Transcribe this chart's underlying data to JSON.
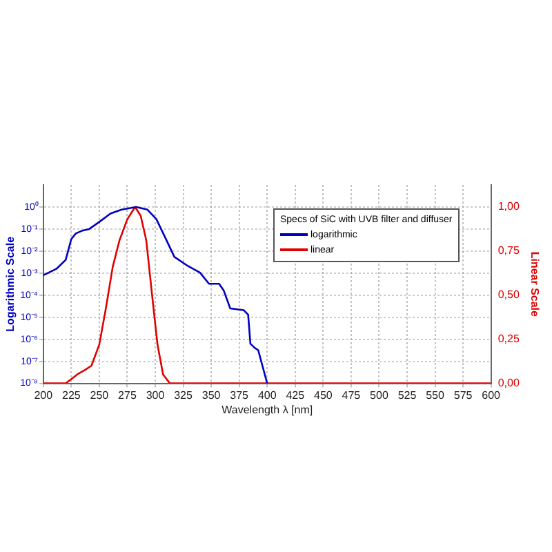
{
  "chart_data": {
    "type": "line",
    "xlabel": "Wavelength λ [nm]",
    "ylabel": "Logarithmic Scale",
    "y2label": "Linear Scale",
    "legend_title": "Specs of SiC with UVB filter and diffuser",
    "series": [
      {
        "name": "logarithmic",
        "color": "#0000c0",
        "x": [
          200,
          212,
          220,
          225,
          229,
          235,
          241,
          250,
          260,
          270,
          283,
          293,
          301,
          309,
          317,
          328,
          340,
          348,
          357,
          361,
          367,
          379,
          383,
          385,
          389,
          392,
          400
        ],
        "values": [
          0.0008,
          0.0016,
          0.004,
          0.035,
          0.063,
          0.085,
          0.1,
          0.21,
          0.5,
          0.76,
          1,
          0.76,
          0.28,
          0.04,
          0.0055,
          0.0023,
          0.00105,
          0.00033,
          0.00033,
          0.00017,
          2.5e-05,
          2.1e-05,
          1.3e-05,
          6.3e-07,
          4e-07,
          3.2e-07,
          1e-08
        ]
      },
      {
        "name": "linear",
        "color": "#e00000",
        "axis": "y2",
        "x": [
          200,
          220,
          225,
          231,
          237,
          243,
          250,
          256,
          262,
          268,
          275,
          282,
          287,
          292,
          297,
          302,
          307,
          313,
          350,
          400,
          450,
          500,
          550,
          600
        ],
        "values": [
          0,
          0,
          0.024,
          0.054,
          0.075,
          0.1,
          0.22,
          0.43,
          0.66,
          0.81,
          0.93,
          1,
          0.95,
          0.81,
          0.51,
          0.22,
          0.05,
          0,
          0,
          0,
          0,
          0,
          0,
          0
        ]
      }
    ],
    "xlim": [
      200,
      600
    ],
    "xticks": [
      200,
      225,
      250,
      275,
      300,
      325,
      350,
      375,
      400,
      425,
      450,
      475,
      500,
      525,
      550,
      575,
      600
    ],
    "log": "y",
    "ylim": [
      1e-08,
      10
    ],
    "yticks": [
      {
        "value": 1e-08,
        "label": "10⁻⁸"
      },
      {
        "value": 1e-07,
        "label": "10⁻⁷"
      },
      {
        "value": 1e-06,
        "label": "10⁻⁶"
      },
      {
        "value": 1e-05,
        "label": "10⁻⁵"
      },
      {
        "value": 0.0001,
        "label": "10⁻⁴"
      },
      {
        "value": 0.001,
        "label": "10⁻³"
      },
      {
        "value": 0.01,
        "label": "10⁻²"
      },
      {
        "value": 0.1,
        "label": "10⁻¹"
      },
      {
        "value": 1,
        "label": "10⁰"
      }
    ],
    "y2lim": [
      0,
      1.125
    ],
    "y2ticks": [
      {
        "value": 0,
        "label": "0,00"
      },
      {
        "value": 0.25,
        "label": "0,25"
      },
      {
        "value": 0.5,
        "label": "0,50"
      },
      {
        "value": 0.75,
        "label": "0,75"
      },
      {
        "value": 1,
        "label": "1,00"
      }
    ],
    "grid": true,
    "legend": "top right",
    "marker": "none",
    "line_style": "solid"
  }
}
